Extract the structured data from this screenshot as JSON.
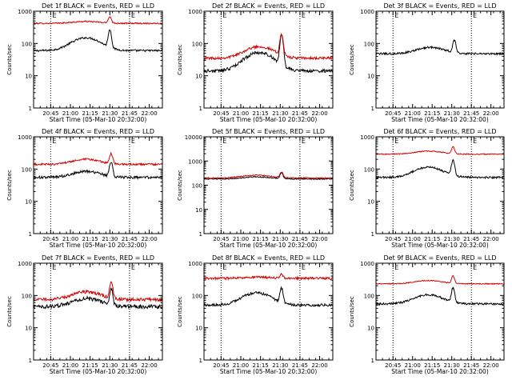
{
  "figure": {
    "common_xlabel": "Start Time (05-Mar-10 20:32:00)",
    "common_ylabel": "Counts/sec",
    "x_tick_labels": [
      "20:45",
      "21:00",
      "21:15",
      "21:30",
      "21:45",
      "22:00"
    ],
    "y_tick_labels": [
      "1",
      "10",
      "100",
      "1000"
    ],
    "flag_text": "E",
    "colors": {
      "events": "#000000",
      "lld": "#d40000",
      "axis": "#000000",
      "background": "#ffffff"
    }
  },
  "chart_data": [
    {
      "type": "line",
      "title": "Det 1f BLACK = Events, RED = LLD",
      "xlabel": "Start Time (05-Mar-10 20:32:00)",
      "ylabel": "Counts/sec",
      "yscale": "log",
      "ylim": [
        1,
        1000
      ],
      "xlim_minutes": [
        0,
        98
      ],
      "x_ticks_minutes": [
        13,
        28,
        43,
        58,
        73,
        88
      ],
      "x_ticks": [
        "20:45",
        "21:00",
        "21:15",
        "21:30",
        "21:45",
        "22:00"
      ],
      "y_ticks": [
        1,
        10,
        100,
        1000
      ],
      "event_markers_minutes": [
        13,
        73
      ],
      "series": [
        {
          "name": "Events",
          "color": "#000000",
          "baseline": 60,
          "hump": {
            "center": 40,
            "amp": 90,
            "width": 14
          },
          "spike": {
            "center": 58,
            "amp": 190,
            "width": 1.5
          },
          "noise": 0.03
        },
        {
          "name": "LLD",
          "color": "#d40000",
          "baseline": 420,
          "hump": {
            "center": 40,
            "amp": 60,
            "width": 14
          },
          "spike": {
            "center": 58,
            "amp": 260,
            "width": 1.5
          },
          "noise": 0.02
        }
      ]
    },
    {
      "type": "line",
      "title": "Det 2f BLACK = Events, RED = LLD",
      "xlabel": "Start Time (05-Mar-10 20:32:00)",
      "ylabel": "Counts/sec",
      "yscale": "log",
      "ylim": [
        1,
        1000
      ],
      "xlim_minutes": [
        0,
        98
      ],
      "x_ticks_minutes": [
        13,
        28,
        43,
        58,
        73,
        88
      ],
      "x_ticks": [
        "20:45",
        "21:00",
        "21:15",
        "21:30",
        "21:45",
        "22:00"
      ],
      "y_ticks": [
        1,
        10,
        100,
        1000
      ],
      "event_markers_minutes": [
        13,
        73
      ],
      "series": [
        {
          "name": "Events",
          "color": "#000000",
          "baseline": 14,
          "hump": {
            "center": 42,
            "amp": 38,
            "width": 14
          },
          "spike": {
            "center": 59,
            "amp": 150,
            "width": 1.5
          },
          "noise": 0.05
        },
        {
          "name": "LLD",
          "color": "#d40000",
          "baseline": 35,
          "hump": {
            "center": 42,
            "amp": 45,
            "width": 14
          },
          "spike": {
            "center": 59,
            "amp": 150,
            "width": 1.5
          },
          "noise": 0.04
        }
      ]
    },
    {
      "type": "line",
      "title": "Det 3f BLACK = Events, RED = LLD",
      "xlabel": "Start Time (05-Mar-10 20:32:00)",
      "ylabel": "Counts/sec",
      "yscale": "log",
      "ylim": [
        1,
        1000
      ],
      "xlim_minutes": [
        0,
        98
      ],
      "x_ticks_minutes": [
        13,
        28,
        43,
        58,
        73,
        88
      ],
      "x_ticks": [
        "20:45",
        "21:00",
        "21:15",
        "21:30",
        "21:45",
        "22:00"
      ],
      "y_ticks": [
        1,
        10,
        100,
        1000
      ],
      "event_markers_minutes": [
        13,
        73
      ],
      "series": [
        {
          "name": "Events",
          "color": "#000000",
          "baseline": 48,
          "hump": {
            "center": 42,
            "amp": 28,
            "width": 14
          },
          "spike": {
            "center": 60,
            "amp": 75,
            "width": 1.5
          },
          "noise": 0.03
        }
      ]
    },
    {
      "type": "line",
      "title": "Det 4f BLACK = Events, RED = LLD",
      "xlabel": "Start Time (05-Mar-10 20:32:00)",
      "ylabel": "Counts/sec",
      "yscale": "log",
      "ylim": [
        1,
        1000
      ],
      "xlim_minutes": [
        0,
        98
      ],
      "x_ticks_minutes": [
        13,
        28,
        43,
        58,
        73,
        88
      ],
      "x_ticks": [
        "20:45",
        "21:00",
        "21:15",
        "21:30",
        "21:45",
        "22:00"
      ],
      "y_ticks": [
        1,
        10,
        100,
        1000
      ],
      "event_markers_minutes": [
        13,
        73
      ],
      "series": [
        {
          "name": "Events",
          "color": "#000000",
          "baseline": 55,
          "hump": {
            "center": 40,
            "amp": 30,
            "width": 14
          },
          "spike": {
            "center": 59,
            "amp": 110,
            "width": 1.5
          },
          "noise": 0.04
        },
        {
          "name": "LLD",
          "color": "#d40000",
          "baseline": 140,
          "hump": {
            "center": 40,
            "amp": 60,
            "width": 14
          },
          "spike": {
            "center": 59,
            "amp": 150,
            "width": 1.5
          },
          "noise": 0.03
        }
      ]
    },
    {
      "type": "line",
      "title": "Det 5f BLACK = Events, RED = LLD",
      "xlabel": "Start Time (05-Mar-10 20:32:00)",
      "ylabel": "Counts/sec",
      "yscale": "log",
      "ylim": [
        1,
        10000
      ],
      "xlim_minutes": [
        0,
        98
      ],
      "x_ticks_minutes": [
        13,
        28,
        43,
        58,
        73,
        88
      ],
      "x_ticks": [
        "20:45",
        "21:00",
        "21:15",
        "21:30",
        "21:45",
        "22:00"
      ],
      "y_ticks": [
        1,
        10,
        100,
        1000,
        10000
      ],
      "y_tick_labels": [
        "1",
        "10",
        "100",
        "1000",
        "10000"
      ],
      "event_markers_minutes": [
        13,
        73
      ],
      "series": [
        {
          "name": "Events",
          "color": "#000000",
          "baseline": 180,
          "hump": {
            "center": 40,
            "amp": 40,
            "width": 14
          },
          "spike": {
            "center": 59,
            "amp": 140,
            "width": 1.5
          },
          "noise": 0.02
        },
        {
          "name": "LLD",
          "color": "#d40000",
          "baseline": 200,
          "hump": {
            "center": 40,
            "amp": 60,
            "width": 14
          },
          "spike": {
            "center": 59,
            "amp": 140,
            "width": 1.5
          },
          "noise": 0.02
        }
      ]
    },
    {
      "type": "line",
      "title": "Det 6f BLACK = Events, RED = LLD",
      "xlabel": "Start Time (05-Mar-10 20:32:00)",
      "ylabel": "Counts/sec",
      "yscale": "log",
      "ylim": [
        1,
        1000
      ],
      "xlim_minutes": [
        0,
        98
      ],
      "x_ticks_minutes": [
        13,
        28,
        43,
        58,
        73,
        88
      ],
      "x_ticks": [
        "20:45",
        "21:00",
        "21:15",
        "21:30",
        "21:45",
        "22:00"
      ],
      "y_ticks": [
        1,
        10,
        100,
        1000
      ],
      "event_markers_minutes": [
        13,
        73
      ],
      "series": [
        {
          "name": "Events",
          "color": "#000000",
          "baseline": 55,
          "hump": {
            "center": 40,
            "amp": 60,
            "width": 14
          },
          "spike": {
            "center": 59,
            "amp": 130,
            "width": 1.5
          },
          "noise": 0.03
        },
        {
          "name": "LLD",
          "color": "#d40000",
          "baseline": 290,
          "hump": {
            "center": 40,
            "amp": 70,
            "width": 14
          },
          "spike": {
            "center": 59,
            "amp": 190,
            "width": 1.5
          },
          "noise": 0.015
        }
      ]
    },
    {
      "type": "line",
      "title": "Det 7f BLACK = Events, RED = LLD",
      "xlabel": "Start Time (05-Mar-10 20:32:00)",
      "ylabel": "Counts/sec",
      "yscale": "log",
      "ylim": [
        1,
        1000
      ],
      "xlim_minutes": [
        0,
        98
      ],
      "x_ticks_minutes": [
        13,
        28,
        43,
        58,
        73,
        88
      ],
      "x_ticks": [
        "20:45",
        "21:00",
        "21:15",
        "21:30",
        "21:45",
        "22:00"
      ],
      "y_ticks": [
        1,
        10,
        100,
        1000
      ],
      "event_markers_minutes": [
        13,
        73
      ],
      "series": [
        {
          "name": "Events",
          "color": "#000000",
          "baseline": 45,
          "hump": {
            "center": 40,
            "amp": 35,
            "width": 14
          },
          "spike": {
            "center": 59,
            "amp": 110,
            "width": 1.5
          },
          "noise": 0.06
        },
        {
          "name": "LLD",
          "color": "#d40000",
          "baseline": 75,
          "hump": {
            "center": 40,
            "amp": 55,
            "width": 14
          },
          "spike": {
            "center": 59,
            "amp": 180,
            "width": 1.5
          },
          "noise": 0.05
        }
      ]
    },
    {
      "type": "line",
      "title": "Det 8f BLACK = Events, RED = LLD",
      "xlabel": "Start Time (05-Mar-10 20:32:00)",
      "ylabel": "Counts/sec",
      "yscale": "log",
      "ylim": [
        1,
        1000
      ],
      "xlim_minutes": [
        0,
        98
      ],
      "x_ticks_minutes": [
        13,
        28,
        43,
        58,
        73,
        88
      ],
      "x_ticks": [
        "20:45",
        "21:00",
        "21:15",
        "21:30",
        "21:45",
        "22:00"
      ],
      "y_ticks": [
        1,
        10,
        100,
        1000
      ],
      "event_markers_minutes": [
        13,
        73
      ],
      "series": [
        {
          "name": "Events",
          "color": "#000000",
          "baseline": 50,
          "hump": {
            "center": 40,
            "amp": 70,
            "width": 14
          },
          "spike": {
            "center": 59,
            "amp": 110,
            "width": 1.5
          },
          "noise": 0.04
        },
        {
          "name": "LLD",
          "color": "#d40000",
          "baseline": 340,
          "hump": {
            "center": 40,
            "amp": 30,
            "width": 14
          },
          "spike": {
            "center": 59,
            "amp": 120,
            "width": 1.5
          },
          "noise": 0.035
        }
      ]
    },
    {
      "type": "line",
      "title": "Det 9f BLACK = Events, RED = LLD",
      "xlabel": "Start Time (05-Mar-10 20:32:00)",
      "ylabel": "Counts/sec",
      "yscale": "log",
      "ylim": [
        1,
        1000
      ],
      "xlim_minutes": [
        0,
        98
      ],
      "x_ticks_minutes": [
        13,
        28,
        43,
        58,
        73,
        88
      ],
      "x_ticks": [
        "20:45",
        "21:00",
        "21:15",
        "21:30",
        "21:45",
        "22:00"
      ],
      "y_ticks": [
        1,
        10,
        100,
        1000
      ],
      "event_markers_minutes": [
        13,
        73
      ],
      "series": [
        {
          "name": "Events",
          "color": "#000000",
          "baseline": 55,
          "hump": {
            "center": 40,
            "amp": 50,
            "width": 14
          },
          "spike": {
            "center": 59,
            "amp": 110,
            "width": 1.5
          },
          "noise": 0.03
        },
        {
          "name": "LLD",
          "color": "#d40000",
          "baseline": 230,
          "hump": {
            "center": 40,
            "amp": 60,
            "width": 14
          },
          "spike": {
            "center": 59,
            "amp": 160,
            "width": 1.5
          },
          "noise": 0.015
        }
      ]
    }
  ]
}
